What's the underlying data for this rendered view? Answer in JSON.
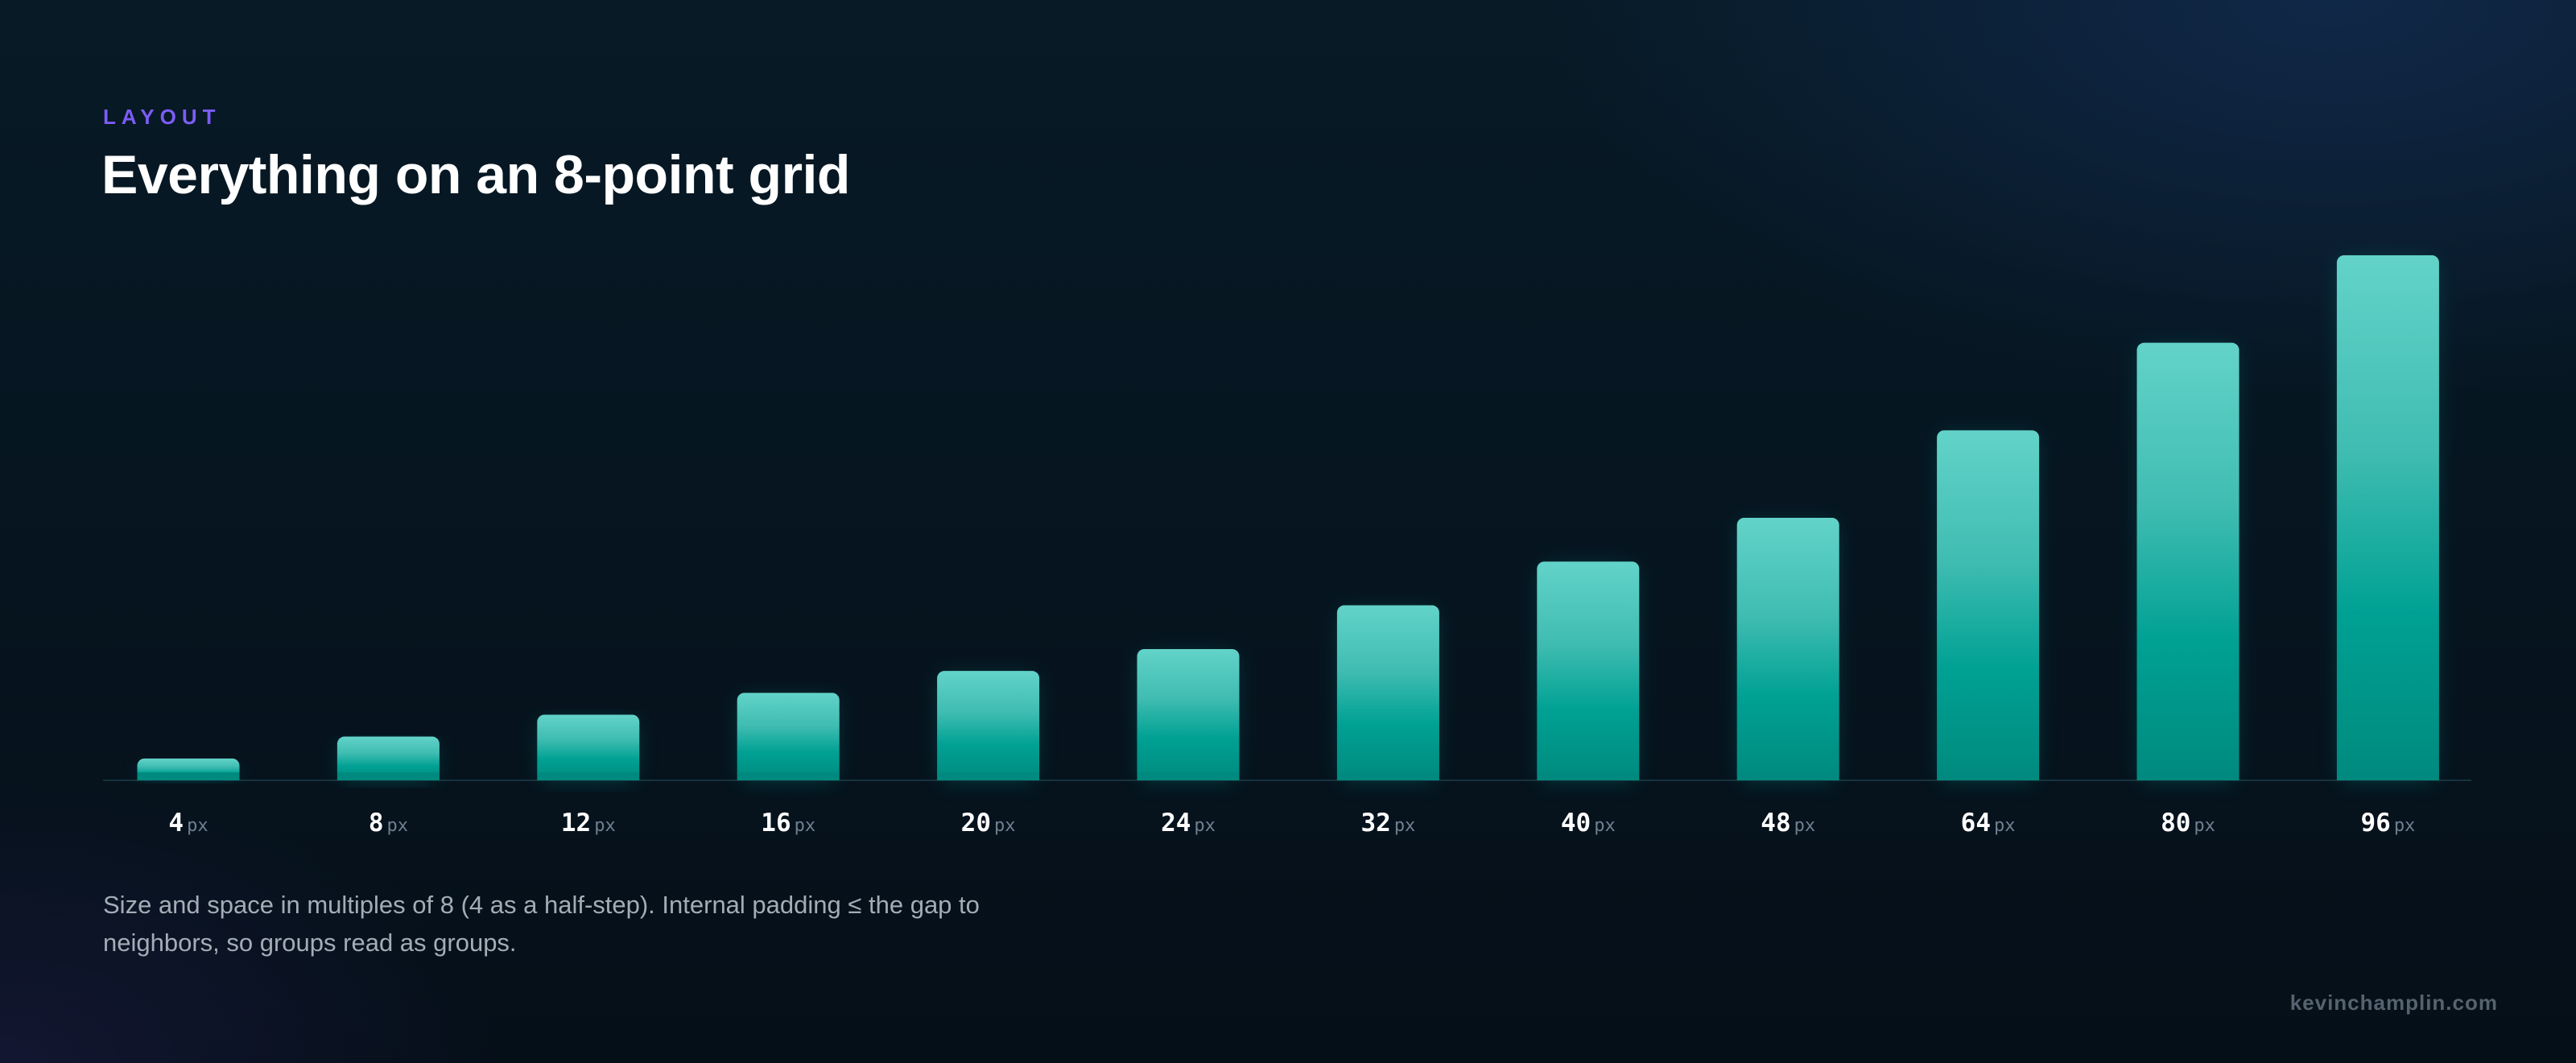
{
  "header": {
    "eyebrow": "LAYOUT",
    "title": "Everything on an 8-point grid"
  },
  "chart_data": {
    "type": "bar",
    "title": "",
    "xlabel": "",
    "ylabel": "",
    "unit": "px",
    "categories": [
      "4",
      "8",
      "12",
      "16",
      "20",
      "24",
      "32",
      "40",
      "48",
      "64",
      "80",
      "96"
    ],
    "values": [
      4,
      8,
      12,
      16,
      20,
      24,
      32,
      40,
      48,
      64,
      80,
      96
    ],
    "ylim": [
      0,
      96
    ],
    "grid": false,
    "colors": {
      "bar_top": "#5fd0c6",
      "bar_mid": "#00a093",
      "bar_bottom": "#008a7f",
      "baseline": "#16333c"
    }
  },
  "caption": "Size and space in multiples of 8 (4 as a half-step). Internal padding ≤ the gap to neighbors, so groups read as groups.",
  "credit": "kevinchamplin.com"
}
